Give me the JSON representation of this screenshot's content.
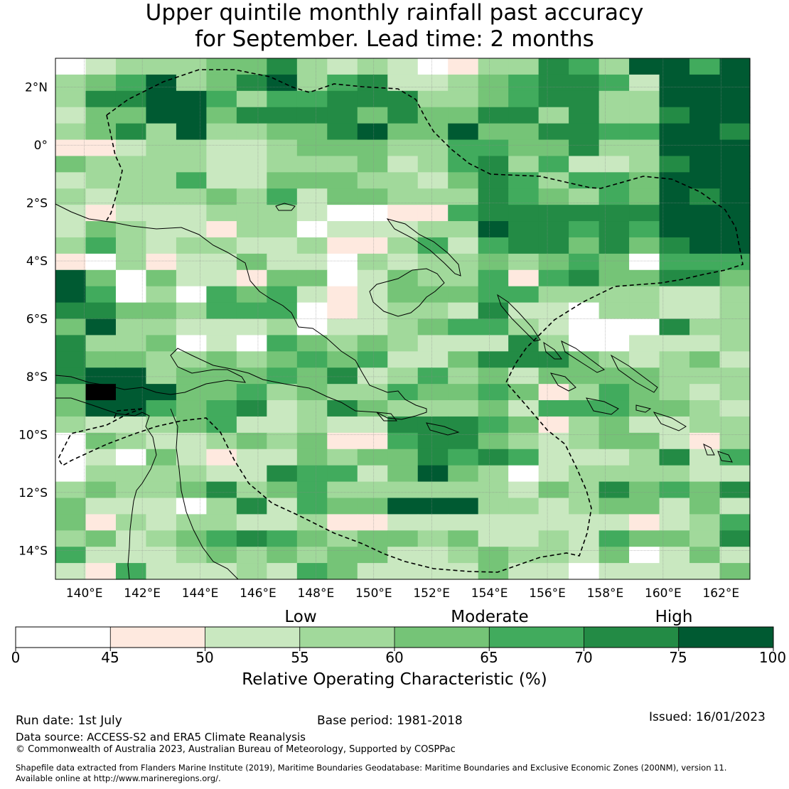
{
  "title_line1": "Upper quintile monthly rainfall past accuracy",
  "title_line2": "for September. Lead time: 2 months",
  "map": {
    "lon_min": 139,
    "lon_max": 163,
    "lat_min": -15,
    "lat_max": 3,
    "lon_ticks": [
      {
        "v": 140,
        "label": "140°E"
      },
      {
        "v": 142,
        "label": "142°E"
      },
      {
        "v": 144,
        "label": "144°E"
      },
      {
        "v": 146,
        "label": "146°E"
      },
      {
        "v": 148,
        "label": "148°E"
      },
      {
        "v": 150,
        "label": "150°E"
      },
      {
        "v": 152,
        "label": "152°E"
      },
      {
        "v": 154,
        "label": "154°E"
      },
      {
        "v": 156,
        "label": "156°E"
      },
      {
        "v": 158,
        "label": "158°E"
      },
      {
        "v": 160,
        "label": "160°E"
      },
      {
        "v": 162,
        "label": "162°E"
      }
    ],
    "lat_ticks": [
      {
        "v": 2,
        "label": "2°N"
      },
      {
        "v": 0,
        "label": "0°"
      },
      {
        "v": -2,
        "label": "2°S"
      },
      {
        "v": -4,
        "label": "4°S"
      },
      {
        "v": -6,
        "label": "6°S"
      },
      {
        "v": -8,
        "label": "8°S"
      },
      {
        "v": -10,
        "label": "10°S"
      },
      {
        "v": -12,
        "label": "12°S"
      },
      {
        "v": -14,
        "label": "14°S"
      }
    ]
  },
  "colorbar": {
    "label": "Relative Operating Characteristic (%)",
    "categories": [
      "Low",
      "Moderate",
      "High"
    ],
    "ticks": [
      "0",
      "45",
      "50",
      "55",
      "60",
      "65",
      "70",
      "75",
      "100"
    ],
    "colors": [
      "#ffffff",
      "#fee9df",
      "#c9e8c0",
      "#a1d99b",
      "#75c477",
      "#41ab5d",
      "#238b45",
      "#005a32"
    ]
  },
  "footer": {
    "run_date": "Run date: 1st July",
    "base_period": "Base period: 1981-2018",
    "issued": "Issued: 16/01/2023",
    "data_source": "Data source: ACCESS-S2 and ERA5 Climate Reanalysis",
    "copyright": "© Commonwealth of Australia 2023, Australian Bureau of Meteorology, Supported by COSPPac",
    "shapefile_line1": "Shapefile data extracted from Flanders Marine Institute (2019), Maritime Boundaries Geodatabase: Maritime Boundaries and Exclusive Economic Zones (200NM), version 11.",
    "shapefile_line2": "Available online at http://www.marineregions.org/."
  },
  "grid_levels": [
    "02333446323201336537757",
    "34573467356223456652777",
    "36677535566633456633777",
    "24477466664644663633677",
    "34637334467447446655776",
    "11233223444335544633777",
    "43333223334235635223677",
    "23335224443324653554777",
    "32333435244333654354767",
    "21222333200115666666777",
    "24322133022233766565777",
    "35323322311352566464677",
    "10312242203233434540555",
    "74042214402433515644664",
    "75030545212444553333223",
    "66443555012332622033223",
    "47332223022345532000633",
    "63340205434322263002223",
    "64433434545224666432342",
    "67734445462353424444333",
    "48774453433544541354323",
    "47754562364333425554432",
    "32234522322666541342233",
    "04322343411566432344213",
    "02042122434465652223625",
    "03333226552474302333322",
    "34334634533333324364546",
    "42220362544777332344242",
    "41323322311222222221235",
    "34234565434434223254436",
    "52223434344223433240242",
    "21522232542222422022224"
  ]
}
